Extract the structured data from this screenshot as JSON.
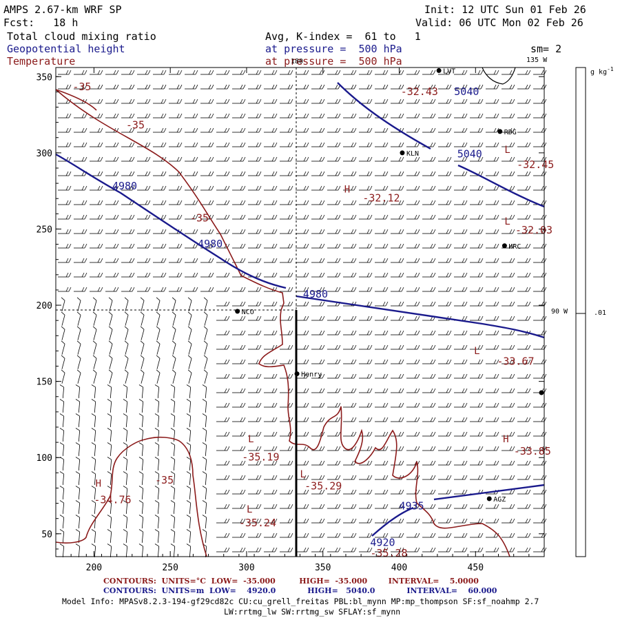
{
  "header": {
    "model_title": "AMPS 2.67-km WRF SP",
    "forecast": "Fcst:   18 h",
    "init": "Init: 12 UTC Sun 01 Feb 26",
    "valid": "Valid: 06 UTC Mon 02 Feb 26",
    "field1": "Total cloud mixing ratio",
    "field2": "Geopotential height",
    "field3": "Temperature",
    "avg_k": "Avg, K-index =  61 to   1",
    "pressure_blue": "at pressure =  500 hPa",
    "pressure_red": "at pressure =  500 hPa",
    "smoothing": "sm= 2"
  },
  "map": {
    "x_ticks": [
      "200",
      "250",
      "300",
      "350",
      "400",
      "450"
    ],
    "y_ticks": [
      "350",
      "300",
      "250",
      "200",
      "150",
      "100",
      "50"
    ],
    "x_range": [
      175,
      495
    ],
    "y_range": [
      35,
      356
    ],
    "lon_labels": {
      "top_left": "180",
      "top_right": "135 W",
      "right": "90 W"
    },
    "stations": [
      {
        "name": "KLN",
        "x": 402,
        "y": 300
      },
      {
        "name": "RDG",
        "x": 466,
        "y": 314
      },
      {
        "name": "HRC",
        "x": 469,
        "y": 239
      },
      {
        "name": "NCO",
        "x": 294,
        "y": 196
      },
      {
        "name": "Henry",
        "x": 333,
        "y": 155
      },
      {
        "name": "AGZ",
        "x": 459,
        "y": 73
      },
      {
        "name": "LVT",
        "x": 426,
        "y": 354
      }
    ],
    "height_labels": [
      {
        "text": "5040",
        "x": 436,
        "y": 338
      },
      {
        "text": "5040",
        "x": 438,
        "y": 297
      },
      {
        "text": "4980",
        "x": 212,
        "y": 276
      },
      {
        "text": "4980",
        "x": 268,
        "y": 238
      },
      {
        "text": "4980",
        "x": 337,
        "y": 205
      },
      {
        "text": "4935",
        "x": 400,
        "y": 66
      },
      {
        "text": "4920",
        "x": 381,
        "y": 42
      }
    ],
    "temp_labels": [
      {
        "text": "-35",
        "x": 186,
        "y": 341
      },
      {
        "text": "-35",
        "x": 221,
        "y": 316
      },
      {
        "text": "-35",
        "x": 263,
        "y": 255
      },
      {
        "text": "-35",
        "x": 240,
        "y": 83
      },
      {
        "text": "-32.43",
        "x": 401,
        "y": 338
      },
      {
        "text": "-32.45",
        "x": 477,
        "y": 290
      },
      {
        "text": "-32.12",
        "x": 376,
        "y": 268
      },
      {
        "text": "-32.03",
        "x": 476,
        "y": 247
      },
      {
        "text": "-33.67",
        "x": 464,
        "y": 161
      },
      {
        "text": "-33.85",
        "x": 475,
        "y": 102
      },
      {
        "text": "-35.19",
        "x": 297,
        "y": 98
      },
      {
        "text": "-35.29",
        "x": 338,
        "y": 79
      },
      {
        "text": "-34.76",
        "x": 200,
        "y": 70
      },
      {
        "text": "-35.24",
        "x": 295,
        "y": 55
      },
      {
        "text": "-35.28",
        "x": 381,
        "y": 35
      }
    ],
    "hl_letters": [
      {
        "text": "H",
        "x": 364,
        "y": 274
      },
      {
        "text": "L",
        "x": 469,
        "y": 300
      },
      {
        "text": "L",
        "x": 469,
        "y": 253
      },
      {
        "text": "L",
        "x": 449,
        "y": 168
      },
      {
        "text": "H",
        "x": 468,
        "y": 110
      },
      {
        "text": "L",
        "x": 301,
        "y": 110
      },
      {
        "text": "L",
        "x": 335,
        "y": 87
      },
      {
        "text": "H",
        "x": 201,
        "y": 81
      },
      {
        "text": "L",
        "x": 300,
        "y": 64
      }
    ]
  },
  "colorbar": {
    "unit": "g kg",
    "unit_sup": "-1",
    "value": ".01"
  },
  "footer": {
    "temp_contours": "CONTOURS:  UNITS=°C  LOW=  -35.000         HIGH=  -35.000        INTERVAL=    5.0000",
    "height_contours": "CONTOURS:  UNITS=m  LOW=    4920.0            HIGH=   5040.0            INTERVAL=    60.000",
    "model_info1": "Model Info: MPASv8.2.3-194-gf29cd82c CU:cu_grell_freitas PBL:bl_mynn MP:mp_thompson SF:sf_noahmp 2.7",
    "model_info2": "LW:rrtmg_lw SW:rrtmg_sw SFLAY:sf_mynn"
  },
  "colors": {
    "height": "#1a1a8c",
    "temperature": "#8b1a1a",
    "barb": "#000000"
  }
}
